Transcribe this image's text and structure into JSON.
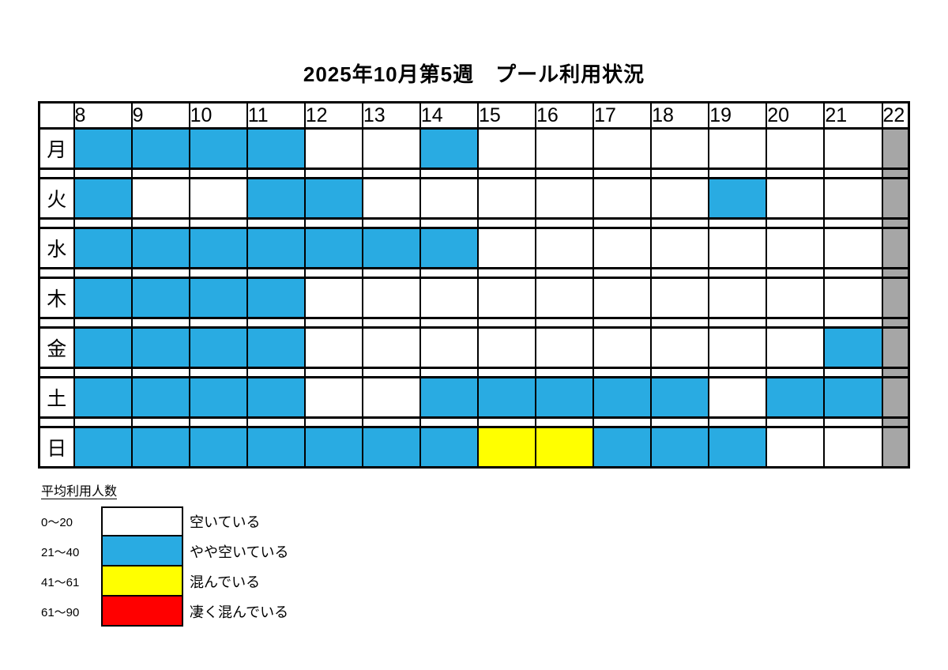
{
  "title": "2025年10月第5週　プール利用状況",
  "colors": {
    "empty": "#ffffff",
    "low": "#29abe2",
    "mid": "#ffff00",
    "high": "#ff0000",
    "closed": "#a6a6a6",
    "grid_line": "#000000",
    "half_hour_line": "#c8c8c8"
  },
  "chart_data": {
    "type": "heatmap",
    "title": "2025年10月第5週　プール利用状況",
    "x_labels": [
      "8",
      "9",
      "10",
      "11",
      "12",
      "13",
      "14",
      "15",
      "16",
      "17",
      "18",
      "19",
      "20",
      "21",
      "22"
    ],
    "y_labels": [
      "月",
      "火",
      "水",
      "木",
      "金",
      "土",
      "日"
    ],
    "value_scale": {
      "empty": "0〜20",
      "low": "21〜40",
      "mid": "41〜61",
      "high": "61〜90"
    },
    "closed_after_label": "22",
    "rows": [
      {
        "day": "月",
        "cells": [
          "low",
          "low",
          "low",
          "low",
          "empty",
          "empty",
          "low",
          "empty",
          "empty",
          "empty",
          "empty",
          "empty",
          "empty",
          "empty"
        ]
      },
      {
        "day": "火",
        "cells": [
          "low",
          "empty",
          "empty",
          "low",
          "low",
          "empty",
          "empty",
          "empty",
          "empty",
          "empty",
          "empty",
          "low",
          "empty",
          "empty"
        ]
      },
      {
        "day": "水",
        "cells": [
          "low",
          "low",
          "low",
          "low",
          "low",
          "low",
          "low",
          "empty",
          "empty",
          "empty",
          "empty",
          "empty",
          "empty",
          "empty"
        ]
      },
      {
        "day": "木",
        "cells": [
          "low",
          "low",
          "low",
          "low",
          "empty",
          "empty",
          "empty",
          "empty",
          "empty",
          "empty",
          "empty",
          "empty",
          "empty",
          "empty"
        ]
      },
      {
        "day": "金",
        "cells": [
          "low",
          "low",
          "low",
          "low",
          "empty",
          "empty",
          "empty",
          "empty",
          "empty",
          "empty",
          "empty",
          "empty",
          "empty",
          "low"
        ]
      },
      {
        "day": "土",
        "cells": [
          "low",
          "low",
          "low",
          "low",
          "empty",
          "empty",
          "low",
          "low",
          "low",
          "low",
          "low",
          "empty",
          "low",
          "low"
        ]
      },
      {
        "day": "日",
        "cells": [
          "low",
          "low",
          "low",
          "low",
          "low",
          "low",
          "low",
          "mid",
          "mid",
          "low",
          "low",
          "low",
          "empty",
          "empty"
        ]
      }
    ]
  },
  "legend": {
    "title": "平均利用人数",
    "items": [
      {
        "range": "0〜20",
        "color_key": "empty",
        "label": "空いている"
      },
      {
        "range": "21〜40",
        "color_key": "low",
        "label": "やや空いている"
      },
      {
        "range": "41〜61",
        "color_key": "mid",
        "label": "混んでいる"
      },
      {
        "range": "61〜90",
        "color_key": "high",
        "label": "凄く混んでいる"
      }
    ]
  }
}
